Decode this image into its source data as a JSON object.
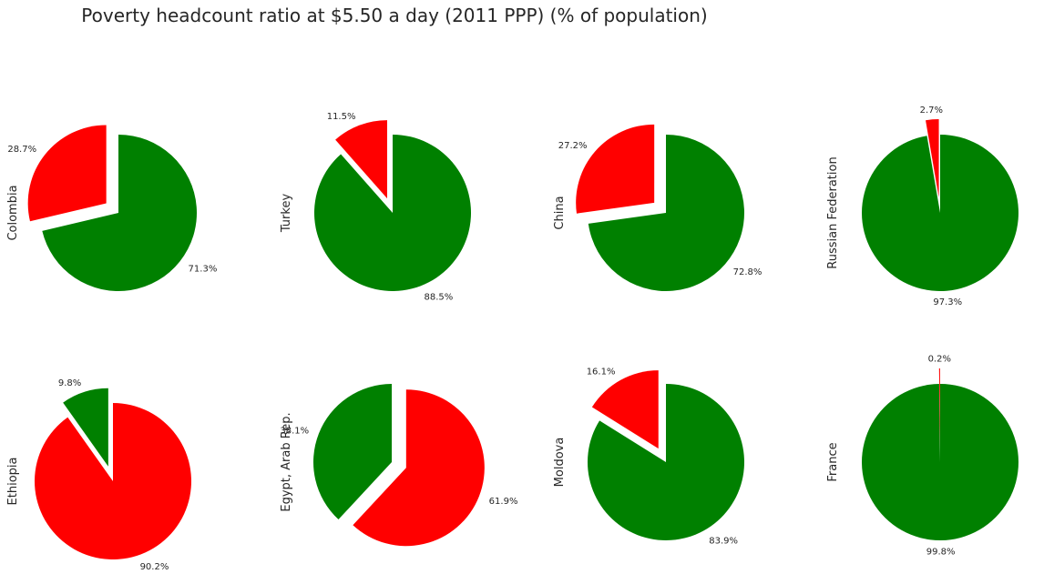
{
  "title": "Poverty headcount ratio at $5.50 a day (2011 PPP) (% of population)",
  "colors": {
    "poor": "#ff0000",
    "not_poor": "#008000"
  },
  "chart_data": [
    {
      "type": "pie",
      "country": "Colombia",
      "labels": [
        "28.7%",
        "71.3%"
      ],
      "values": [
        28.7,
        71.3
      ],
      "colors": [
        "#ff0000",
        "#008000"
      ],
      "exploded": 0
    },
    {
      "type": "pie",
      "country": "Turkey",
      "labels": [
        "11.5%",
        "88.5%"
      ],
      "values": [
        11.5,
        88.5
      ],
      "colors": [
        "#ff0000",
        "#008000"
      ],
      "exploded": 0
    },
    {
      "type": "pie",
      "country": "China",
      "labels": [
        "27.2%",
        "72.8%"
      ],
      "values": [
        27.2,
        72.8
      ],
      "colors": [
        "#ff0000",
        "#008000"
      ],
      "exploded": 0
    },
    {
      "type": "pie",
      "country": "Russian Federation",
      "labels": [
        "2.7%",
        "97.3%"
      ],
      "values": [
        2.7,
        97.3
      ],
      "colors": [
        "#ff0000",
        "#008000"
      ],
      "exploded": 0
    },
    {
      "type": "pie",
      "country": "Ethiopia",
      "labels": [
        "9.8%",
        "90.2%"
      ],
      "values": [
        9.8,
        90.2
      ],
      "colors": [
        "#008000",
        "#ff0000"
      ],
      "exploded": 0
    },
    {
      "type": "pie",
      "country": "Egypt, Arab Rep.",
      "labels": [
        "38.1%",
        "61.9%"
      ],
      "values": [
        38.1,
        61.9
      ],
      "colors": [
        "#008000",
        "#ff0000"
      ],
      "exploded": 1
    },
    {
      "type": "pie",
      "country": "Moldova",
      "labels": [
        "16.1%",
        "83.9%"
      ],
      "values": [
        16.1,
        83.9
      ],
      "colors": [
        "#ff0000",
        "#008000"
      ],
      "exploded": 0
    },
    {
      "type": "pie",
      "country": "France",
      "labels": [
        "0.2%",
        "99.8%"
      ],
      "values": [
        0.2,
        99.8
      ],
      "colors": [
        "#ff0000",
        "#008000"
      ],
      "exploded": 0
    }
  ]
}
